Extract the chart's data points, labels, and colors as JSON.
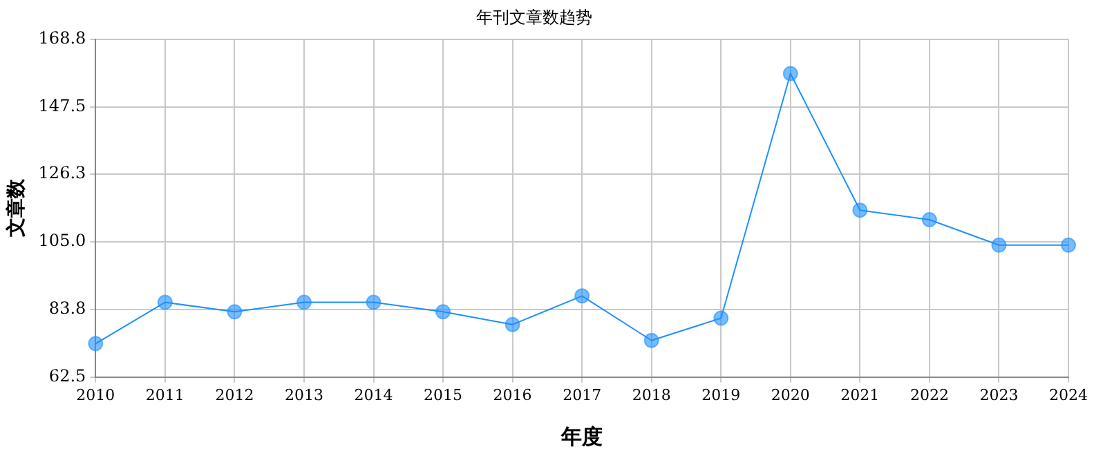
{
  "chart_data": {
    "type": "line",
    "title": "年刊文章数趋势",
    "xlabel": "年度",
    "ylabel": "文章数",
    "categories": [
      "2010",
      "2011",
      "2012",
      "2013",
      "2014",
      "2015",
      "2016",
      "2017",
      "2018",
      "2019",
      "2020",
      "2021",
      "2022",
      "2023",
      "2024"
    ],
    "series": [
      {
        "color": "#1e90ff",
        "values": [
          73,
          86,
          83,
          86,
          86,
          83,
          79,
          88,
          74,
          81,
          158,
          115,
          112,
          104,
          104
        ]
      }
    ],
    "ylim": [
      62.5,
      168.8
    ],
    "yticks": [
      62.5,
      83.8,
      {
        "value": 105,
        "label": "105.0"
      },
      126.3,
      147.5,
      168.8
    ],
    "grid": true,
    "marker": "circle",
    "legend": false
  }
}
